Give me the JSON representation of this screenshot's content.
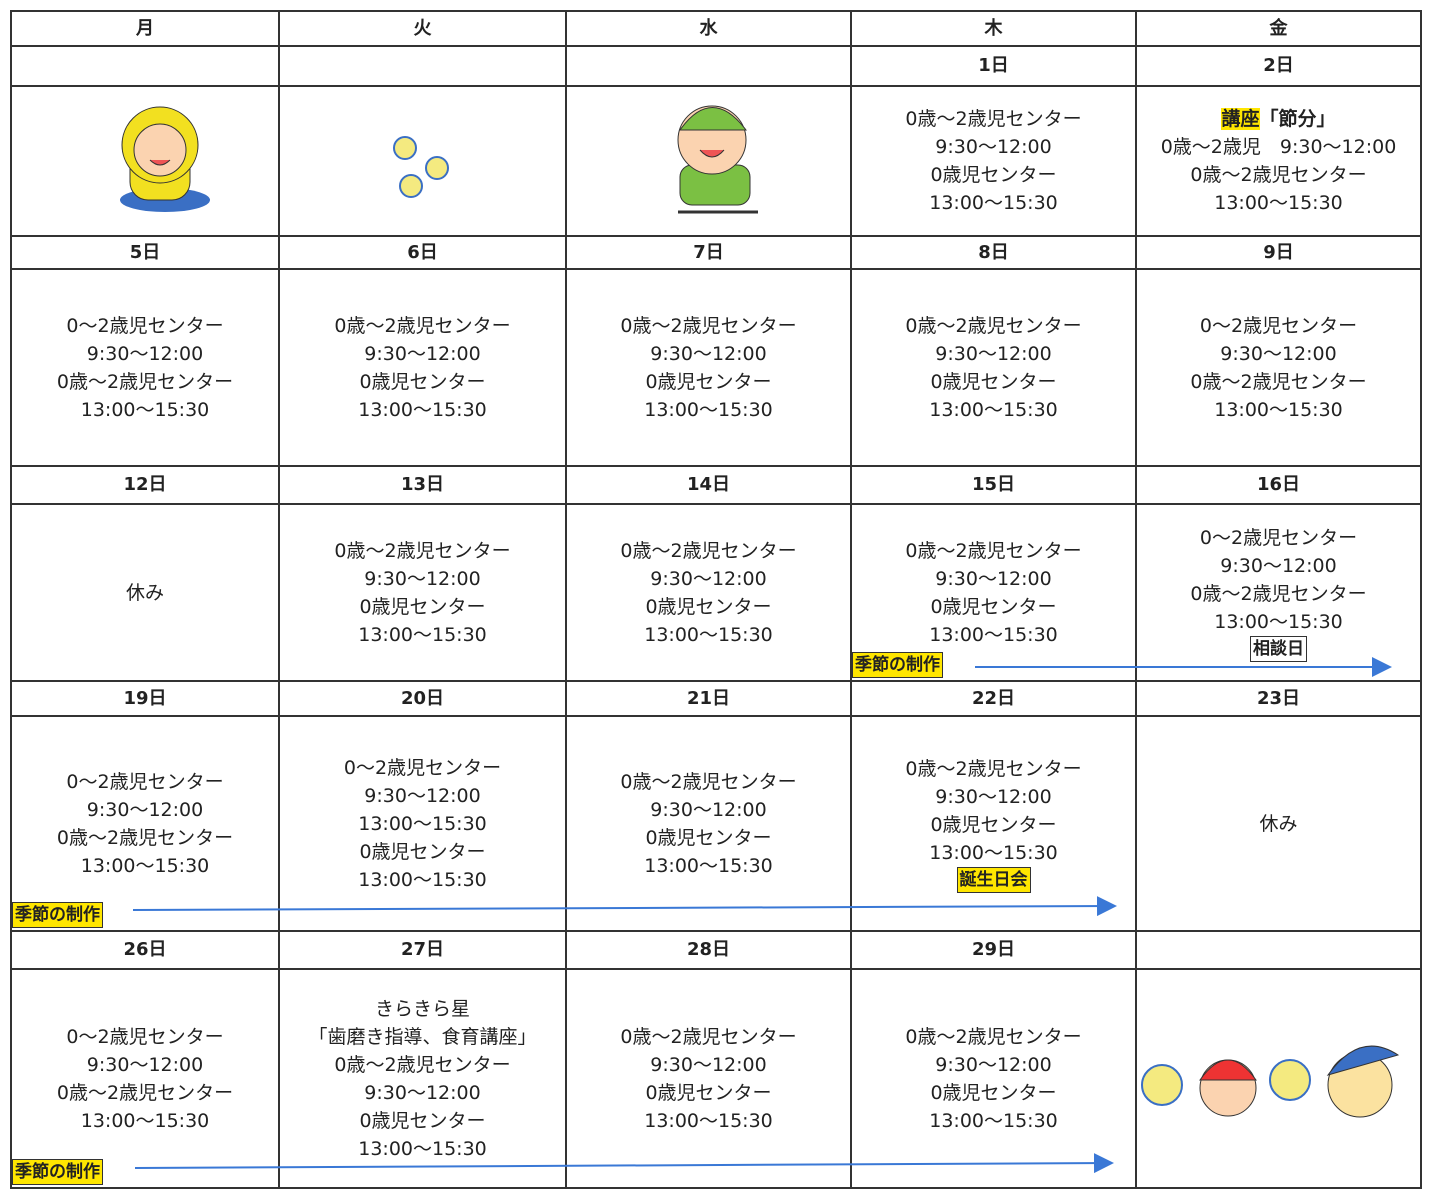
{
  "header": {
    "days": [
      "月",
      "火",
      "水",
      "木",
      "金"
    ]
  },
  "weeks": [
    {
      "dates": [
        null,
        null,
        null,
        "1日",
        "2日"
      ],
      "cells": [
        null,
        null,
        null,
        {
          "lines": [
            "0歳〜2歳児センター",
            "9:30〜12:00",
            "0歳児センター",
            "13:00〜15:30"
          ]
        },
        {
          "lead": {
            "highlight": "講座",
            "rest": "「節分」"
          },
          "lines": [
            "0歳〜2歳児　9:30〜12:00",
            "0歳〜2歳児センター",
            "13:00〜15:30"
          ]
        }
      ]
    },
    {
      "dates": [
        "5日",
        "6日",
        "7日",
        "8日",
        "9日"
      ],
      "cells": [
        {
          "lines": [
            "0〜2歳児センター",
            "9:30〜12:00",
            "0歳〜2歳児センター",
            "13:00〜15:30"
          ]
        },
        {
          "lines": [
            "0歳〜2歳児センター",
            "9:30〜12:00",
            "0歳児センター",
            "13:00〜15:30"
          ]
        },
        {
          "lines": [
            "0歳〜2歳児センター",
            "9:30〜12:00",
            "0歳児センター",
            "13:00〜15:30"
          ]
        },
        {
          "lines": [
            "0歳〜2歳児センター",
            "9:30〜12:00",
            "0歳児センター",
            "13:00〜15:30"
          ]
        },
        {
          "lines": [
            "0〜2歳児センター",
            "9:30〜12:00",
            "0歳〜2歳児センター",
            "13:00〜15:30"
          ]
        }
      ]
    },
    {
      "dates": [
        "12日",
        "13日",
        "14日",
        "15日",
        "16日"
      ],
      "cells": [
        {
          "lines": [
            "休み"
          ]
        },
        {
          "lines": [
            "0歳〜2歳児センター",
            "9:30〜12:00",
            "0歳児センター",
            "13:00〜15:30"
          ]
        },
        {
          "lines": [
            "0歳〜2歳児センター",
            "9:30〜12:00",
            "0歳児センター",
            "13:00〜15:30"
          ]
        },
        {
          "lines": [
            "0歳〜2歳児センター",
            "9:30〜12:00",
            "0歳児センター",
            "13:00〜15:30"
          ],
          "seasonal": "季節の制作"
        },
        {
          "lines": [
            "0〜2歳児センター",
            "9:30〜12:00",
            "0歳〜2歳児センター",
            "13:00〜15:30"
          ],
          "note": "相談日"
        }
      ]
    },
    {
      "dates": [
        "19日",
        "20日",
        "21日",
        "22日",
        "23日"
      ],
      "cells": [
        {
          "lines": [
            "0〜2歳児センター",
            "9:30〜12:00",
            "0歳〜2歳児センター",
            "13:00〜15:30"
          ],
          "seasonal": "季節の制作"
        },
        {
          "lines": [
            "0〜2歳児センター",
            "9:30〜12:00",
            "13:00〜15:30",
            "0歳児センター",
            "13:00〜15:30"
          ]
        },
        {
          "lines": [
            "0歳〜2歳児センター",
            "9:30〜12:00",
            "0歳児センター",
            "13:00〜15:30"
          ]
        },
        {
          "lines": [
            "0歳〜2歳児センター",
            "9:30〜12:00",
            "0歳児センター",
            "13:00〜15:30"
          ],
          "event": "誕生日会"
        },
        {
          "lines": [
            "休み"
          ]
        }
      ]
    },
    {
      "dates": [
        "26日",
        "27日",
        "28日",
        "29日",
        null
      ],
      "cells": [
        {
          "lines": [
            "0〜2歳児センター",
            "9:30〜12:00",
            "0歳〜2歳児センター",
            "13:00〜15:30"
          ],
          "seasonal": "季節の制作"
        },
        {
          "lines": [
            "きらきら星",
            "「歯磨き指導、食育講座」",
            "0歳〜2歳児センター",
            "9:30〜12:00",
            "0歳児センター",
            "13:00〜15:30"
          ]
        },
        {
          "lines": [
            "0歳〜2歳児センター",
            "9:30〜12:00",
            "0歳児センター",
            "13:00〜15:30"
          ]
        },
        {
          "lines": [
            "0歳〜2歳児センター",
            "9:30〜12:00",
            "0歳児センター",
            "13:00〜15:30"
          ]
        },
        null
      ]
    }
  ]
}
